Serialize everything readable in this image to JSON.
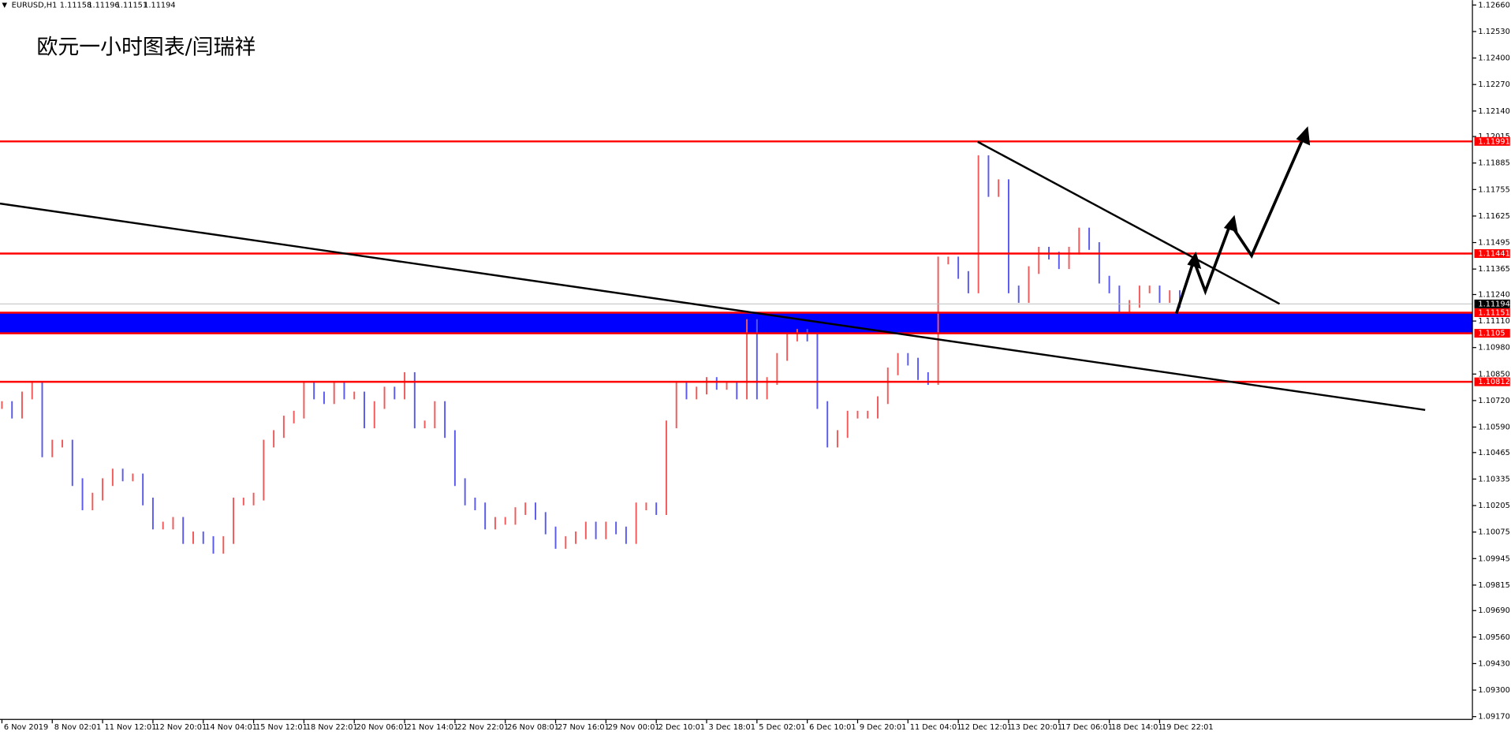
{
  "chart_data": {
    "type": "price-bars",
    "symbol": "EURUSD,H1",
    "ohlc": [
      1.11158,
      1.11196,
      1.11151,
      1.11194
    ],
    "title": "欧元一小时图表/闫瑞祥",
    "categories": [
      "6 Nov 2019",
      null,
      null,
      null,
      null,
      "8 Nov 02:01",
      null,
      null,
      null,
      null,
      "11 Nov 12:01",
      null,
      null,
      null,
      null,
      "12 Nov 20:01",
      null,
      null,
      null,
      null,
      "14 Nov 04:01",
      null,
      null,
      null,
      null,
      "15 Nov 12:01",
      null,
      null,
      null,
      null,
      "18 Nov 22:01",
      null,
      null,
      null,
      null,
      "20 Nov 06:01",
      null,
      null,
      null,
      null,
      "21 Nov 14:01",
      null,
      null,
      null,
      null,
      "22 Nov 22:01",
      null,
      null,
      null,
      null,
      "26 Nov 08:01",
      null,
      null,
      null,
      null,
      "27 Nov 16:01",
      null,
      null,
      null,
      null,
      "29 Nov 00:01",
      null,
      null,
      null,
      null,
      "2 Dec 10:01",
      null,
      null,
      null,
      null,
      "3 Dec 18:01",
      null,
      null,
      null,
      null,
      "5 Dec 02:01",
      null,
      null,
      null,
      null,
      "6 Dec 10:01",
      null,
      null,
      null,
      null,
      "9 Dec 20:01",
      null,
      null,
      null,
      null,
      "11 Dec 04:01",
      null,
      null,
      null,
      null,
      "12 Dec 12:01",
      null,
      null,
      null,
      null,
      "13 Dec 20:01",
      null,
      null,
      null,
      null,
      "17 Dec 06:01",
      null,
      null,
      null,
      null,
      "18 Dec 14:01",
      null,
      null,
      null,
      null,
      "19 Dec 22:01",
      null,
      null
    ],
    "values": [
      1.10698,
      1.10651,
      1.10745,
      1.10792,
      1.10461,
      1.10509,
      1.10509,
      1.1032,
      1.10201,
      1.10249,
      1.1032,
      1.10367,
      1.10343,
      1.10343,
      1.10225,
      1.10107,
      1.10107,
      1.1013,
      1.10036,
      1.10059,
      1.10036,
      1.09988,
      1.10036,
      1.10225,
      1.10225,
      1.10249,
      1.10509,
      1.10556,
      1.10627,
      1.10651,
      1.10792,
      1.10745,
      1.10722,
      1.10792,
      1.10745,
      1.10745,
      1.10603,
      1.10698,
      1.10769,
      1.10745,
      1.1084,
      1.10603,
      1.10603,
      1.10698,
      1.10556,
      1.1032,
      1.10225,
      1.10201,
      1.10107,
      1.1013,
      1.1013,
      1.10178,
      1.10201,
      1.10154,
      1.10083,
      1.10012,
      1.10036,
      1.10059,
      1.10107,
      1.10059,
      1.10107,
      1.10083,
      1.10036,
      1.10201,
      1.10201,
      1.10178,
      1.10603,
      1.10792,
      1.10745,
      1.10769,
      1.10816,
      1.10792,
      1.10792,
      1.10745,
      1.111,
      1.10745,
      1.10816,
      1.10934,
      1.11029,
      1.11052,
      1.11029,
      1.10698,
      1.10509,
      1.10556,
      1.10651,
      1.10651,
      1.10651,
      1.10722,
      1.10863,
      1.10934,
      1.10911,
      1.1084,
      1.10816,
      1.11407,
      1.11407,
      1.11336,
      1.11265,
      1.11904,
      1.11738,
      1.11786,
      1.11265,
      1.11218,
      1.1136,
      1.11455,
      1.11431,
      1.11384,
      1.11455,
      1.11549,
      1.11478,
      1.11313,
      1.11265,
      1.11171,
      1.11194,
      1.11265,
      1.11265,
      1.11218,
      1.11242,
      1.11194
    ],
    "up_color": "#f05a5a",
    "down_color": "#5a5af0",
    "ylim": [
      1.09156,
      1.12684
    ],
    "yticks": [
      {
        "value": 1.1266,
        "label": "1.12660"
      },
      {
        "value": 1.1253,
        "label": "1.12530"
      },
      {
        "value": 1.124,
        "label": "1.12400"
      },
      {
        "value": 1.1227,
        "label": "1.12270"
      },
      {
        "value": 1.1214,
        "label": "1.12140"
      },
      1.12015,
      1.11885,
      1.11755,
      1.11625,
      1.11495,
      1.11365,
      {
        "value": 1.1124,
        "label": "1.11240"
      },
      {
        "value": 1.1111,
        "label": "1.11110"
      },
      {
        "value": 1.1098,
        "label": "1.10980"
      },
      {
        "value": 1.1085,
        "label": "1.10850"
      },
      {
        "value": 1.1072,
        "label": "1.10720"
      },
      {
        "value": 1.1059,
        "label": "1.10590"
      },
      1.10465,
      1.10335,
      1.10205,
      1.10075,
      1.09945,
      1.09815,
      {
        "value": 1.0969,
        "label": "1.09690"
      },
      {
        "value": 1.0956,
        "label": "1.09560"
      },
      {
        "value": 1.0943,
        "label": "1.09430"
      },
      {
        "value": 1.093,
        "label": "1.09300"
      },
      {
        "value": 1.0917,
        "label": "1.09170"
      }
    ],
    "levels": [
      {
        "value": 1.11991,
        "color": "#ff0000"
      },
      {
        "value": 1.11441,
        "color": "#ff0000"
      },
      {
        "value": 1.11151,
        "color": "#ff0000",
        "zone_edge": true
      },
      {
        "value": 1.1105,
        "color": "#ff0000",
        "zone_edge": true
      },
      {
        "value": 1.10812,
        "color": "#ff0000"
      }
    ],
    "zone_color": "#0000ff",
    "current_price": 1.11194
  }
}
